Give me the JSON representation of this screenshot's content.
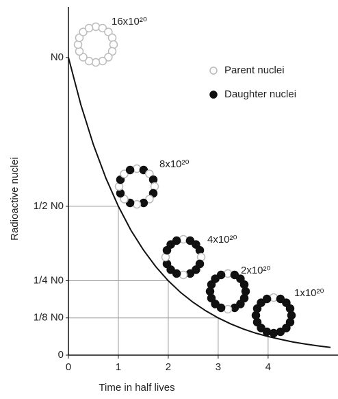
{
  "chart_data": {
    "type": "line",
    "x_label": "Time in half lives",
    "y_label": "Radioactive nuclei",
    "x": [
      0,
      0.25,
      0.5,
      0.75,
      1,
      1.25,
      1.5,
      1.75,
      2,
      2.25,
      2.5,
      2.75,
      3,
      3.25,
      3.5,
      3.75,
      4,
      4.25,
      4.5,
      4.75,
      5,
      5.25
    ],
    "values": [
      1,
      0.841,
      0.707,
      0.595,
      0.5,
      0.42,
      0.354,
      0.297,
      0.25,
      0.21,
      0.177,
      0.149,
      0.125,
      0.105,
      0.088,
      0.074,
      0.0625,
      0.053,
      0.044,
      0.037,
      0.031,
      0.026
    ],
    "color": "#111111",
    "xlim": [
      0,
      5.4
    ],
    "ylim": [
      0,
      1.17
    ],
    "xticks": [
      0,
      1,
      2,
      3,
      4
    ],
    "yticks": [
      0,
      {
        "value": 0.125,
        "label": "1/8 N0"
      },
      {
        "value": 0.25,
        "label": "1/4 N0"
      },
      {
        "value": 0.5,
        "label": "1/2 N0"
      },
      {
        "value": 1,
        "label": "N0"
      }
    ],
    "legend": [
      {
        "name": "Parent nuclei",
        "color": "#bbbbbb"
      },
      {
        "name": "Daughter nuclei",
        "color": "#111111"
      }
    ],
    "rings": [
      {
        "label": "16x10²⁰",
        "parent": 16,
        "total": 16
      },
      {
        "label": "8x10²⁰",
        "parent": 8,
        "total": 16
      },
      {
        "label": "4x10²⁰",
        "parent": 4,
        "total": 16
      },
      {
        "label": "2x10²⁰",
        "parent": 2,
        "total": 16
      },
      {
        "label": "1x10²⁰",
        "parent": 1,
        "total": 16
      }
    ]
  }
}
